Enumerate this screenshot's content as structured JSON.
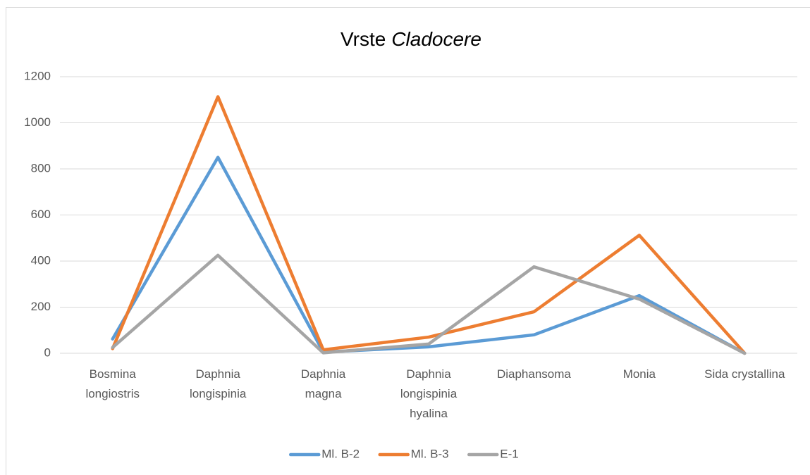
{
  "chart_data": {
    "type": "line",
    "title": [
      "Vrste",
      "Cladocere"
    ],
    "categories": [
      [
        "Bosmina",
        "longiostris"
      ],
      [
        "Daphnia",
        "longispinia"
      ],
      [
        "Daphnia",
        "magna"
      ],
      [
        "Daphnia",
        "longispinia",
        "hyalina"
      ],
      [
        "Diaphansoma"
      ],
      [
        "Monia"
      ],
      [
        "Sida crystallina"
      ]
    ],
    "series": [
      {
        "name": "Ml. B-2",
        "color": "#5b9bd5",
        "values": [
          62,
          850,
          5,
          28,
          80,
          250,
          0
        ]
      },
      {
        "name": "Ml. B-3",
        "color": "#ed7d31",
        "values": [
          20,
          1113,
          15,
          70,
          180,
          512,
          0
        ]
      },
      {
        "name": "E-1",
        "color": "#a5a5a5",
        "values": [
          25,
          425,
          2,
          40,
          375,
          235,
          0
        ]
      }
    ],
    "ylim": [
      0,
      1200
    ],
    "yticks": [
      0,
      200,
      400,
      600,
      800,
      1000,
      1200
    ],
    "grid": true,
    "legend": "bottom"
  }
}
